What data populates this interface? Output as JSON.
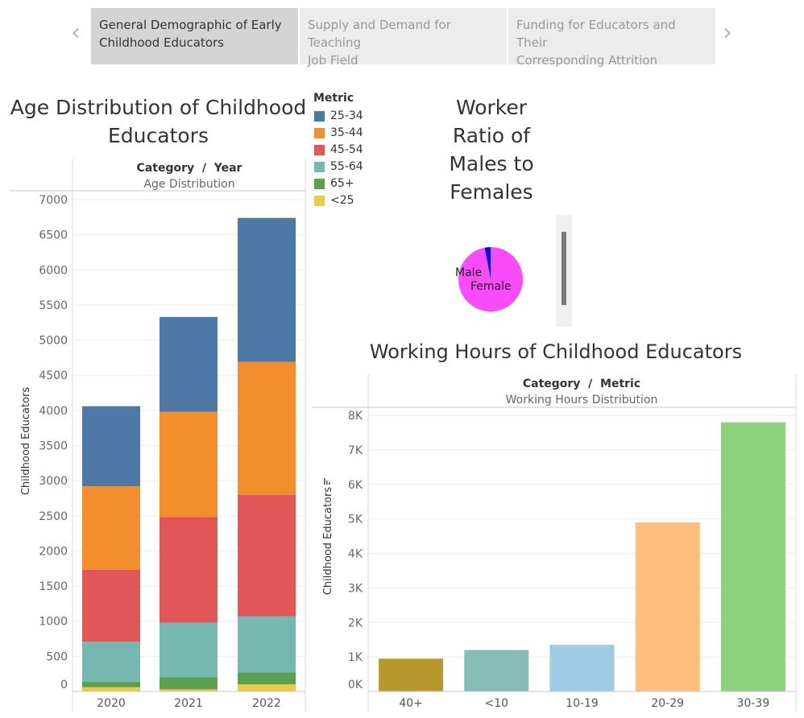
{
  "tabs": [
    {
      "label_line1": "General Demographic of Early",
      "label_line2": "Childhood Educators",
      "active": true
    },
    {
      "label_line1": "Supply and Demand for Teaching",
      "label_line2": "Job Field",
      "active": false
    },
    {
      "label_line1": "Funding for Educators and Their",
      "label_line2": "Corresponding Attrition",
      "active": false
    }
  ],
  "nav": {
    "prev": "‹",
    "next": "›"
  },
  "age_chart": {
    "title_line1": "Age Distribution of Childhood",
    "title_line2": "Educators",
    "header_main": "Category  /  Year",
    "header_sub": "Age Distribution",
    "ylabel": "Childhood Educators"
  },
  "legend": {
    "title": "Metric",
    "items": [
      {
        "label": "25-34",
        "color": "#4e79a7"
      },
      {
        "label": "35-44",
        "color": "#f28e2b"
      },
      {
        "label": "45-54",
        "color": "#e15759"
      },
      {
        "label": "55-64",
        "color": "#76b7b2"
      },
      {
        "label": "65+",
        "color": "#59a14f"
      },
      {
        "label": "<25",
        "color": "#edc948"
      }
    ]
  },
  "ratio_chart": {
    "title_lines": [
      "Worker",
      "Ratio of",
      "Males to",
      "Females"
    ],
    "male_label": "Male",
    "female_label": "Female"
  },
  "hours_chart": {
    "title": "Working Hours of Childhood Educators",
    "header_main": "Category  /  Metric",
    "header_sub": "Working Hours Distribution",
    "ylabel": "Childhood Educators"
  },
  "chart_data": [
    {
      "type": "bar",
      "stacked": true,
      "title": "Age Distribution of Childhood Educators",
      "categories": [
        "2020",
        "2021",
        "2022"
      ],
      "ylabel": "Childhood Educators",
      "ylim": [
        0,
        7000
      ],
      "yticks": [
        0,
        500,
        1000,
        1500,
        2000,
        2500,
        3000,
        3500,
        4000,
        4500,
        5000,
        5500,
        6000,
        6500,
        7000
      ],
      "series": [
        {
          "name": "<25",
          "color": "#edc948",
          "values": [
            60,
            30,
            100
          ]
        },
        {
          "name": "65+",
          "color": "#59a14f",
          "values": [
            80,
            170,
            170
          ]
        },
        {
          "name": "55-64",
          "color": "#76b7b2",
          "values": [
            570,
            780,
            800
          ]
        },
        {
          "name": "45-54",
          "color": "#e15759",
          "values": [
            1020,
            1500,
            1730
          ]
        },
        {
          "name": "35-44",
          "color": "#f28e2b",
          "values": [
            1190,
            1500,
            1890
          ]
        },
        {
          "name": "25-34",
          "color": "#4e79a7",
          "values": [
            1140,
            1350,
            2050
          ]
        }
      ]
    },
    {
      "type": "pie",
      "title": "Worker Ratio of Males to Females",
      "slices": [
        {
          "name": "Male",
          "value": 3,
          "color": "#0a0ad9"
        },
        {
          "name": "Female",
          "value": 97,
          "color": "#f74cf7"
        }
      ]
    },
    {
      "type": "bar",
      "title": "Working Hours of Childhood Educators",
      "categories": [
        "40+",
        "<10",
        "10-19",
        "20-29",
        "30-39"
      ],
      "values": [
        950,
        1200,
        1350,
        4900,
        7800
      ],
      "colors": [
        "#b6992d",
        "#86bcb6",
        "#9fcae6",
        "#ffbe7d",
        "#8cd17d"
      ],
      "ylabel": "Childhood Educators",
      "ylim": [
        0,
        8000
      ],
      "yticks": [
        0,
        1000,
        2000,
        3000,
        4000,
        5000,
        6000,
        7000,
        8000
      ],
      "ytick_labels": [
        "0K",
        "1K",
        "2K",
        "3K",
        "4K",
        "5K",
        "6K",
        "7K",
        "8K"
      ]
    }
  ]
}
